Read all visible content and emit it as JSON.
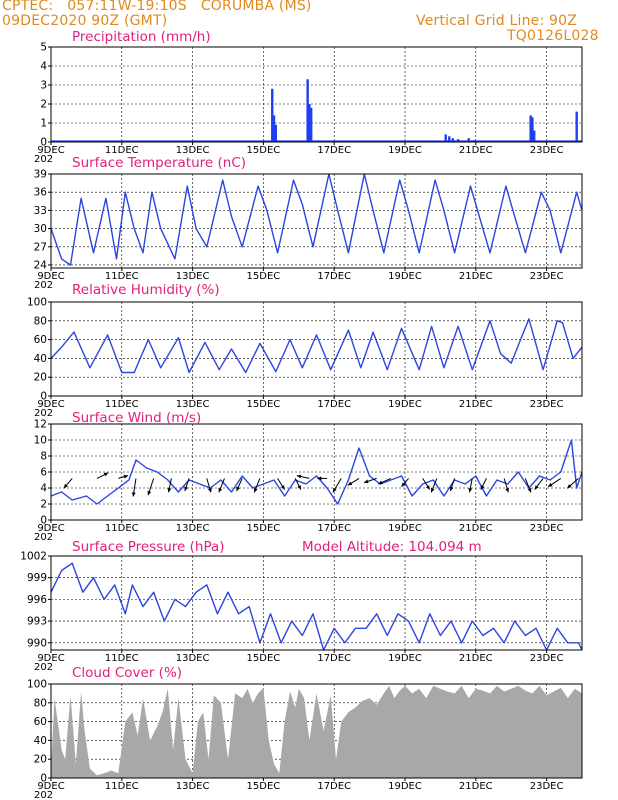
{
  "header": {
    "line1_left": "CPTEC:   057:11W-19:10S   CORUMBA (MS)",
    "line2_left": "09DEC2020 90Z (GMT)",
    "line1_right": "Vertical Grid Line: 90Z",
    "line2_right": "TQ0126L028"
  },
  "colors": {
    "header": "#e08a1e",
    "title": "#e0207e",
    "series": "#2b45e0",
    "cloud": "#a8a8a8",
    "bars": "#1f3ff0"
  },
  "x_axis": {
    "tick_labels": [
      "9DEC",
      "11DEC",
      "13DEC",
      "15DEC",
      "17DEC",
      "19DEC",
      "21DEC",
      "23DEC"
    ],
    "tick_days": [
      9,
      11,
      13,
      15,
      17,
      19,
      21,
      23
    ],
    "cut_label": "202",
    "range_days": [
      9,
      24
    ]
  },
  "chart_data": [
    {
      "id": "precip",
      "type": "bar",
      "title": "Precipitation (mm/h)",
      "ylim": [
        0,
        5
      ],
      "yticks": [
        0,
        1,
        2,
        3,
        4,
        5
      ],
      "grid": "dashed",
      "x_days": [
        15.25,
        15.3,
        15.35,
        16.25,
        16.3,
        16.35,
        20.15,
        20.25,
        20.35,
        20.5,
        20.8,
        20.95,
        22.55,
        22.6,
        22.65,
        23.85
      ],
      "values": [
        2.8,
        1.4,
        0.9,
        3.3,
        2.0,
        1.8,
        0.4,
        0.3,
        0.2,
        0.15,
        0.2,
        0.1,
        1.4,
        1.3,
        0.6,
        1.6
      ]
    },
    {
      "id": "temp",
      "type": "line",
      "title": "Surface Temperature (nC)",
      "ylim": [
        23.5,
        39
      ],
      "yticks": [
        24,
        27,
        30,
        33,
        36,
        39
      ],
      "yticklabels": [
        "24",
        "27",
        "30",
        "33",
        "36",
        "39"
      ],
      "grid": "dashed",
      "x_days": [
        9.0,
        9.3,
        9.55,
        9.85,
        10.2,
        10.55,
        10.85,
        11.1,
        11.35,
        11.6,
        11.85,
        12.1,
        12.5,
        12.85,
        13.1,
        13.4,
        13.85,
        14.1,
        14.4,
        14.85,
        15.1,
        15.4,
        15.85,
        16.1,
        16.4,
        16.85,
        17.1,
        17.4,
        17.85,
        18.1,
        18.4,
        18.85,
        19.1,
        19.4,
        19.85,
        20.1,
        20.4,
        20.85,
        21.1,
        21.4,
        21.85,
        22.1,
        22.4,
        22.85,
        23.1,
        23.4,
        23.85,
        24.0
      ],
      "values": [
        30,
        25,
        24,
        35,
        26,
        35,
        25,
        36,
        30,
        26,
        36,
        30,
        25,
        37,
        30,
        27,
        38,
        32,
        27,
        37,
        33,
        26,
        38,
        34,
        27,
        39,
        33,
        26,
        39,
        33,
        26,
        38,
        33,
        26,
        38,
        33,
        26,
        37,
        32,
        26,
        37,
        32,
        26,
        36,
        33,
        26,
        36,
        33
      ]
    },
    {
      "id": "rh",
      "type": "line",
      "title": "Relative Humidity (%)",
      "ylim": [
        0,
        100
      ],
      "yticks": [
        0,
        20,
        40,
        60,
        80,
        100
      ],
      "grid": "dashed",
      "x_days": [
        9.0,
        9.3,
        9.65,
        10.1,
        10.6,
        11.0,
        11.35,
        11.75,
        12.1,
        12.6,
        12.9,
        13.35,
        13.75,
        14.1,
        14.5,
        14.9,
        15.35,
        15.75,
        16.1,
        16.5,
        16.9,
        17.4,
        17.75,
        18.1,
        18.5,
        18.9,
        19.4,
        19.75,
        20.1,
        20.5,
        20.9,
        21.4,
        21.7,
        22.0,
        22.5,
        22.9,
        23.3,
        23.45,
        23.75,
        24.0
      ],
      "values": [
        40,
        52,
        68,
        30,
        65,
        25,
        25,
        60,
        30,
        62,
        25,
        57,
        28,
        50,
        25,
        56,
        26,
        60,
        30,
        65,
        28,
        70,
        30,
        68,
        28,
        72,
        28,
        74,
        30,
        74,
        28,
        80,
        45,
        35,
        82,
        28,
        80,
        78,
        40,
        52
      ]
    },
    {
      "id": "wind",
      "type": "line",
      "title": "Surface Wind (m/s)",
      "ylim": [
        0,
        12
      ],
      "yticks": [
        0,
        2,
        4,
        6,
        8,
        10,
        12
      ],
      "grid": "dashed",
      "x_days": [
        9.0,
        9.3,
        9.6,
        10.0,
        10.3,
        10.6,
        10.9,
        11.2,
        11.4,
        11.7,
        12.0,
        12.3,
        12.6,
        12.9,
        13.2,
        13.5,
        13.8,
        14.1,
        14.4,
        14.7,
        15.0,
        15.3,
        15.6,
        15.9,
        16.2,
        16.5,
        16.8,
        17.1,
        17.4,
        17.7,
        18.0,
        18.3,
        18.6,
        18.9,
        19.2,
        19.5,
        19.8,
        20.1,
        20.4,
        20.7,
        21.0,
        21.3,
        21.6,
        21.9,
        22.2,
        22.5,
        22.8,
        23.1,
        23.4,
        23.7,
        23.85,
        24.0
      ],
      "values": [
        3,
        3.5,
        2.5,
        3,
        2,
        3,
        4,
        5,
        7.5,
        6.5,
        6,
        5,
        3.5,
        5,
        4.5,
        4,
        5,
        3.5,
        5.5,
        4,
        4.5,
        5,
        3,
        5,
        4.5,
        5.5,
        4,
        2,
        5,
        9,
        5.5,
        4.5,
        5,
        5.5,
        3,
        4.5,
        5,
        3,
        5,
        4.5,
        5.5,
        3,
        5,
        4.5,
        6,
        4,
        5.5,
        5,
        6,
        10,
        4,
        6
      ],
      "arrows": [
        {
          "x": 9.6,
          "dx": -0.6,
          "dy": -0.7
        },
        {
          "x": 10.3,
          "dx": 0.8,
          "dy": 0.4
        },
        {
          "x": 10.9,
          "dx": 0.7,
          "dy": 0.2
        },
        {
          "x": 11.4,
          "dx": -0.2,
          "dy": -1.3
        },
        {
          "x": 11.9,
          "dx": -0.4,
          "dy": -1.2
        },
        {
          "x": 12.4,
          "dx": -0.2,
          "dy": -1.0
        },
        {
          "x": 12.9,
          "dx": -0.3,
          "dy": -0.9
        },
        {
          "x": 13.4,
          "dx": 0.3,
          "dy": -1.0
        },
        {
          "x": 13.9,
          "dx": -0.4,
          "dy": -1.0
        },
        {
          "x": 14.4,
          "dx": -0.4,
          "dy": -0.9
        },
        {
          "x": 14.9,
          "dx": -0.4,
          "dy": -1.0
        },
        {
          "x": 15.4,
          "dx": 0.5,
          "dy": -0.8
        },
        {
          "x": 15.9,
          "dx": 0.4,
          "dy": -0.8
        },
        {
          "x": 16.3,
          "dx": -0.9,
          "dy": 0.2
        },
        {
          "x": 16.8,
          "dx": -0.7,
          "dy": 0.0
        },
        {
          "x": 17.2,
          "dx": -0.6,
          "dy": -1.0
        },
        {
          "x": 17.7,
          "dx": -0.8,
          "dy": -0.5
        },
        {
          "x": 18.2,
          "dx": -0.9,
          "dy": -0.3
        },
        {
          "x": 18.6,
          "dx": -0.9,
          "dy": -0.4
        },
        {
          "x": 19.1,
          "dx": -0.5,
          "dy": -0.6
        },
        {
          "x": 19.5,
          "dx": 0.5,
          "dy": -0.8
        },
        {
          "x": 19.9,
          "dx": -0.4,
          "dy": -1.0
        },
        {
          "x": 20.4,
          "dx": -0.3,
          "dy": -0.9
        },
        {
          "x": 20.9,
          "dx": -0.2,
          "dy": -1.0
        },
        {
          "x": 21.3,
          "dx": -0.4,
          "dy": -0.8
        },
        {
          "x": 21.8,
          "dx": 0.3,
          "dy": -1.0
        },
        {
          "x": 22.4,
          "dx": 0.4,
          "dy": -1.0
        },
        {
          "x": 22.9,
          "dx": -0.6,
          "dy": -0.8
        },
        {
          "x": 23.4,
          "dx": -0.9,
          "dy": -0.6
        },
        {
          "x": 23.9,
          "dx": -0.8,
          "dy": -0.7
        }
      ]
    },
    {
      "id": "pres",
      "type": "line",
      "title": "Surface Pressure (hPa)",
      "subtitle": "Model Altitude: 104.094 m",
      "ylim": [
        989,
        1002
      ],
      "yticks": [
        990,
        993,
        996,
        999,
        1002
      ],
      "grid": "dashed",
      "x_days": [
        9.0,
        9.3,
        9.6,
        9.9,
        10.2,
        10.5,
        10.8,
        11.1,
        11.3,
        11.6,
        11.9,
        12.2,
        12.5,
        12.8,
        13.1,
        13.4,
        13.7,
        14.0,
        14.3,
        14.6,
        14.9,
        15.2,
        15.5,
        15.8,
        16.1,
        16.4,
        16.7,
        17.0,
        17.3,
        17.6,
        17.9,
        18.2,
        18.5,
        18.8,
        19.1,
        19.4,
        19.7,
        20.0,
        20.3,
        20.6,
        20.9,
        21.2,
        21.5,
        21.8,
        22.1,
        22.4,
        22.7,
        23.0,
        23.3,
        23.6,
        23.9,
        24.0
      ],
      "values": [
        997,
        1000,
        1001,
        997,
        999,
        996,
        998,
        994,
        998,
        995,
        997,
        993,
        996,
        995,
        997,
        998,
        994,
        997,
        994,
        995,
        990,
        994,
        990,
        993,
        991,
        994,
        989,
        992,
        990,
        992,
        992,
        994,
        991,
        994,
        993,
        990,
        994,
        991,
        993,
        990,
        993,
        991,
        992,
        990,
        993,
        991,
        992,
        989,
        992,
        990,
        990,
        989
      ]
    },
    {
      "id": "cloud",
      "type": "area",
      "title": "Cloud Cover (%)",
      "ylim": [
        0,
        100
      ],
      "yticks": [
        0,
        20,
        40,
        60,
        80,
        100
      ],
      "grid": "dashed",
      "x_days": [
        9.0,
        9.1,
        9.3,
        9.4,
        9.55,
        9.7,
        9.85,
        9.95,
        10.1,
        10.3,
        10.5,
        10.7,
        10.9,
        11.1,
        11.3,
        11.45,
        11.6,
        11.8,
        12.0,
        12.15,
        12.3,
        12.45,
        12.6,
        12.8,
        13.0,
        13.15,
        13.3,
        13.45,
        13.6,
        13.8,
        14.0,
        14.2,
        14.4,
        14.55,
        14.7,
        14.85,
        15.0,
        15.15,
        15.3,
        15.45,
        15.6,
        15.75,
        15.9,
        16.0,
        16.15,
        16.3,
        16.5,
        16.7,
        16.9,
        17.05,
        17.2,
        17.4,
        17.6,
        17.8,
        18.0,
        18.2,
        18.4,
        18.55,
        18.7,
        18.85,
        19.0,
        19.2,
        19.4,
        19.6,
        19.8,
        20.0,
        20.2,
        20.4,
        20.6,
        20.8,
        21.0,
        21.2,
        21.4,
        21.6,
        21.8,
        22.0,
        22.2,
        22.4,
        22.6,
        22.8,
        23.0,
        23.2,
        23.4,
        23.6,
        23.8,
        24.0
      ],
      "values": [
        10,
        85,
        30,
        20,
        88,
        15,
        92,
        50,
        10,
        3,
        5,
        8,
        5,
        60,
        70,
        45,
        85,
        40,
        55,
        70,
        95,
        30,
        85,
        20,
        5,
        60,
        70,
        20,
        88,
        80,
        20,
        90,
        85,
        95,
        80,
        90,
        96,
        40,
        15,
        5,
        60,
        92,
        75,
        95,
        85,
        40,
        90,
        50,
        88,
        20,
        60,
        70,
        75,
        82,
        85,
        78,
        90,
        98,
        85,
        93,
        98,
        90,
        95,
        85,
        98,
        95,
        92,
        90,
        98,
        85,
        95,
        93,
        90,
        98,
        92,
        95,
        98,
        93,
        90,
        98,
        88,
        92,
        96,
        85,
        95,
        90
      ]
    }
  ]
}
